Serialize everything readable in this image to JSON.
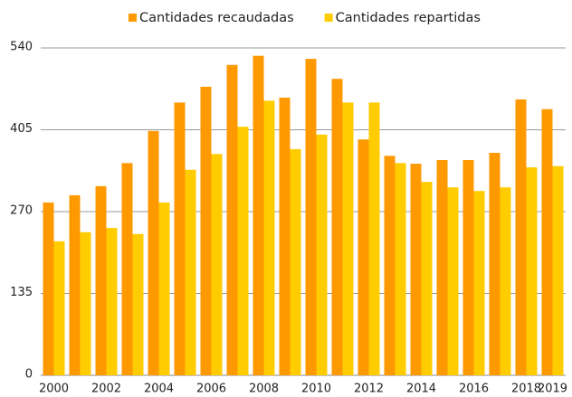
{
  "chart_data": {
    "type": "bar",
    "categories": [
      "2000",
      null,
      "2002",
      null,
      "2004",
      null,
      "2006",
      null,
      "2008",
      null,
      "2010",
      null,
      "2012",
      null,
      "2014",
      null,
      "2016",
      null,
      "2018",
      "2019"
    ],
    "series": [
      {
        "name": "Cantidades recaudadas",
        "color": "#ff9900",
        "values": [
          285,
          297,
          312,
          350,
          403,
          450,
          476,
          512,
          527,
          458,
          522,
          489,
          389,
          362,
          349,
          355,
          355,
          367,
          455,
          439
        ]
      },
      {
        "name": "Cantidades repartidas",
        "color": "#ffcc00",
        "values": [
          221,
          236,
          243,
          233,
          285,
          339,
          365,
          410,
          453,
          373,
          397,
          450,
          450,
          350,
          319,
          310,
          304,
          310,
          343,
          345
        ]
      }
    ],
    "ylim": [
      0,
      540
    ],
    "yticks": [
      0,
      135,
      270,
      405,
      540
    ],
    "grid": true,
    "legend": "top"
  }
}
